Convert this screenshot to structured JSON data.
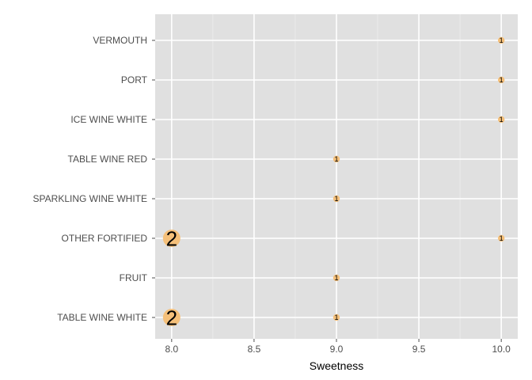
{
  "chart_data": {
    "type": "scatter",
    "title": "",
    "xlabel": "Sweetness",
    "ylabel": "",
    "xlim": [
      7.9,
      10.1
    ],
    "x_ticks": [
      "8.0",
      "8.5",
      "9.0",
      "9.5",
      "10.0"
    ],
    "x_tick_values": [
      8.0,
      8.5,
      9.0,
      9.5,
      10.0
    ],
    "categories": [
      "TABLE WINE WHITE",
      "FRUIT",
      "OTHER FORTIFIED",
      "SPARKLING WINE WHITE",
      "TABLE WINE RED",
      "ICE WINE WHITE",
      "PORT",
      "VERMOUTH"
    ],
    "points": [
      {
        "category": "VERMOUTH",
        "x": 10.0,
        "count": 1,
        "label": "1"
      },
      {
        "category": "PORT",
        "x": 10.0,
        "count": 1,
        "label": "1"
      },
      {
        "category": "ICE WINE WHITE",
        "x": 10.0,
        "count": 1,
        "label": "1"
      },
      {
        "category": "TABLE WINE RED",
        "x": 9.0,
        "count": 1,
        "label": "1"
      },
      {
        "category": "SPARKLING WINE WHITE",
        "x": 9.0,
        "count": 1,
        "label": "1"
      },
      {
        "category": "OTHER FORTIFIED",
        "x": 8.0,
        "count": 2,
        "label": "2"
      },
      {
        "category": "OTHER FORTIFIED",
        "x": 10.0,
        "count": 1,
        "label": "1"
      },
      {
        "category": "FRUIT",
        "x": 9.0,
        "count": 1,
        "label": "1"
      },
      {
        "category": "TABLE WINE WHITE",
        "x": 8.0,
        "count": 2,
        "label": "2"
      },
      {
        "category": "TABLE WINE WHITE",
        "x": 9.0,
        "count": 1,
        "label": "1"
      }
    ],
    "grid": true,
    "legend": "none",
    "colors": {
      "panel": "#e0e0e0",
      "grid": "#ffffff",
      "point": "#f5c07a",
      "text": "#4d4d4d"
    }
  }
}
